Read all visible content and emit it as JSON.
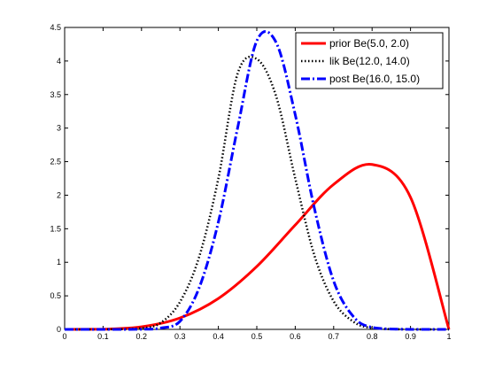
{
  "chart_data": {
    "type": "line",
    "xlim": [
      0,
      1
    ],
    "ylim": [
      0,
      4.5
    ],
    "x_ticks": [
      "0",
      "0.1",
      "0.2",
      "0.3",
      "0.4",
      "0.5",
      "0.6",
      "0.7",
      "0.8",
      "0.9",
      "1"
    ],
    "y_ticks": [
      "0",
      "0.5",
      "1",
      "1.5",
      "2",
      "2.5",
      "3",
      "3.5",
      "4",
      "4.5"
    ],
    "grid": false,
    "legend_position": "top-right",
    "series": [
      {
        "name": "prior Be(5.0, 2.0)",
        "color": "#ff0000",
        "line_style": "solid",
        "x": [
          0,
          0.1,
          0.2,
          0.3,
          0.4,
          0.5,
          0.6,
          0.7,
          0.8,
          0.9,
          1.0
        ],
        "y": [
          0,
          0.0027,
          0.0384,
          0.1701,
          0.4608,
          0.9375,
          1.5552,
          2.1609,
          2.4576,
          1.9683,
          0
        ]
      },
      {
        "name": "lik Be(12.0, 14.0)",
        "color": "#000000",
        "line_style": "dotted",
        "x": [
          0,
          0.1,
          0.2,
          0.25,
          0.3,
          0.35,
          0.4,
          0.45,
          0.5,
          0.55,
          0.6,
          0.65,
          0.7,
          0.75,
          0.8,
          0.9,
          1.0
        ],
        "y": [
          0,
          0.0001,
          0.018,
          0.099,
          0.408,
          1.08,
          2.25,
          3.81,
          4.03,
          3.48,
          2.25,
          1.1,
          0.42,
          0.12,
          0.02,
          0,
          0
        ]
      },
      {
        "name": "post Be(16.0, 15.0)",
        "color": "#0000ff",
        "line_style": "dashdot",
        "x": [
          0,
          0.1,
          0.2,
          0.25,
          0.3,
          0.35,
          0.4,
          0.45,
          0.5,
          0.55,
          0.6,
          0.65,
          0.7,
          0.75,
          0.8,
          0.9,
          1.0
        ],
        "y": [
          0,
          0,
          0.002,
          0.02,
          0.12,
          0.62,
          1.6,
          3.0,
          4.3,
          4.28,
          3.2,
          1.8,
          0.72,
          0.2,
          0.03,
          0,
          0
        ]
      }
    ]
  }
}
